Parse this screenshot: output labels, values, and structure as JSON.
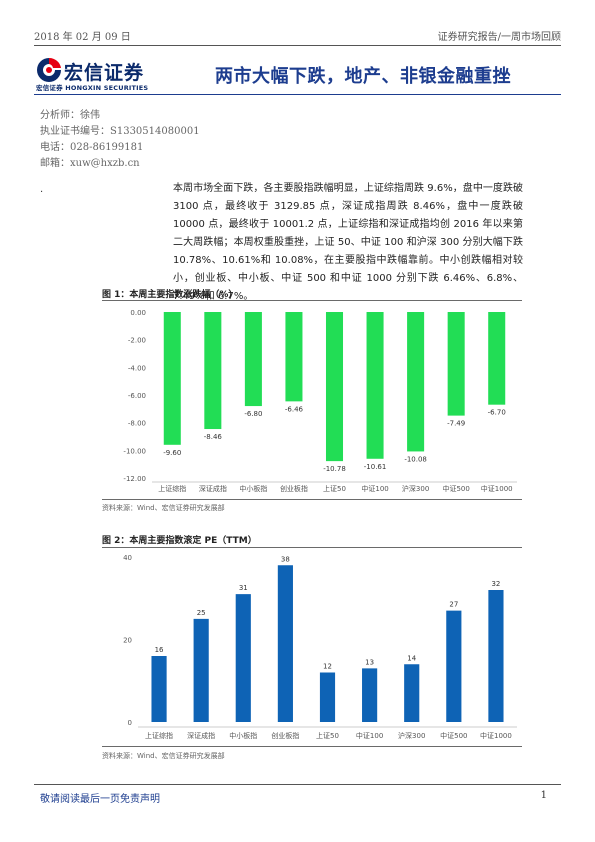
{
  "header": {
    "date": "2018 年 02 月 09 日",
    "report_type": "证券研究报告/一周市场回顾"
  },
  "logo": {
    "name": "宏信证券",
    "sub": "宏信证券 HONGXIN SECURITIES",
    "brand_color": "#0b2a6b",
    "accent_color": "#e60012"
  },
  "title": "两市大幅下跌，地产、非银金融重挫",
  "analyst": {
    "name": "分析师：徐伟",
    "license": "执业证书编号：S1330514080001",
    "phone": "电话：028-86199181",
    "email": "邮箱：xuw@hxzb.cn"
  },
  "marker": "·",
  "summary": "本周市场全面下跌，各主要股指跌幅明显，上证综指周跌 9.6%，盘中一度跌破 3100 点，最终收于 3129.85 点，深证成指周跌 8.46%，盘中一度跌破 10000 点，最终收于 10001.2 点，上证综指和深证成指均创 2016 年以来第二大周跌幅；本周权重股重挫，上证 50、中证 100 和沪深 300 分别大幅下跌 10.78%、10.61%和 10.08%，在主要股指中跌幅靠前。中小创跌幅相对较小，创业板、中小板、中证 500 和中证 1000 分别下跌 6.46%、6.8%、7.49%和 6.7%。",
  "figures": [
    {
      "title": "图 1：本周主要指数涨跌幅（%）",
      "source": "资料来源：Wind、宏信证券研究发展部"
    },
    {
      "title": "图 2：本周主要指数滚定 PE（TTM）",
      "source": "资料来源：Wind、宏信证券研究发展部"
    }
  ],
  "chart_data": [
    {
      "type": "bar",
      "categories": [
        "上证综指",
        "深证成指",
        "中小板指",
        "创业板指",
        "上证50",
        "中证100",
        "沪深300",
        "中证500",
        "中证1000"
      ],
      "values": [
        -9.6,
        -8.46,
        -6.8,
        -6.46,
        -10.78,
        -10.61,
        -10.08,
        -7.49,
        -6.7
      ],
      "data_labels": [
        "-9.60",
        "-8.46",
        "-6.80",
        "-6.46",
        "-10.78",
        "-10.61",
        "-10.08",
        "-7.49",
        "-6.70"
      ],
      "ylim": [
        -12,
        0
      ],
      "yticks": [
        "0.00",
        "-2.00",
        "-4.00",
        "-6.00",
        "-8.00",
        "-10.00",
        "-12.00"
      ],
      "ytick_values": [
        0,
        -2,
        -4,
        -6,
        -8,
        -10,
        -12
      ],
      "color": "#22dd55",
      "grid": false,
      "legend": "none"
    },
    {
      "type": "bar",
      "categories": [
        "上证综指",
        "深证成指",
        "中小板指",
        "创业板指",
        "上证50",
        "中证100",
        "沪深300",
        "中证500",
        "中证1000"
      ],
      "values": [
        16,
        25,
        31,
        38,
        12,
        13,
        14,
        27,
        32
      ],
      "data_labels": [
        "16",
        "25",
        "31",
        "38",
        "12",
        "13",
        "14",
        "27",
        "32"
      ],
      "ylim": [
        0,
        40
      ],
      "yticks": [
        "0",
        "20",
        "40"
      ],
      "ytick_values": [
        0,
        20,
        40
      ],
      "color": "#0e63b5",
      "grid": false,
      "legend": "none"
    }
  ],
  "footer": {
    "disclaimer": "敬请阅读最后一页免责声明",
    "page": "1"
  }
}
